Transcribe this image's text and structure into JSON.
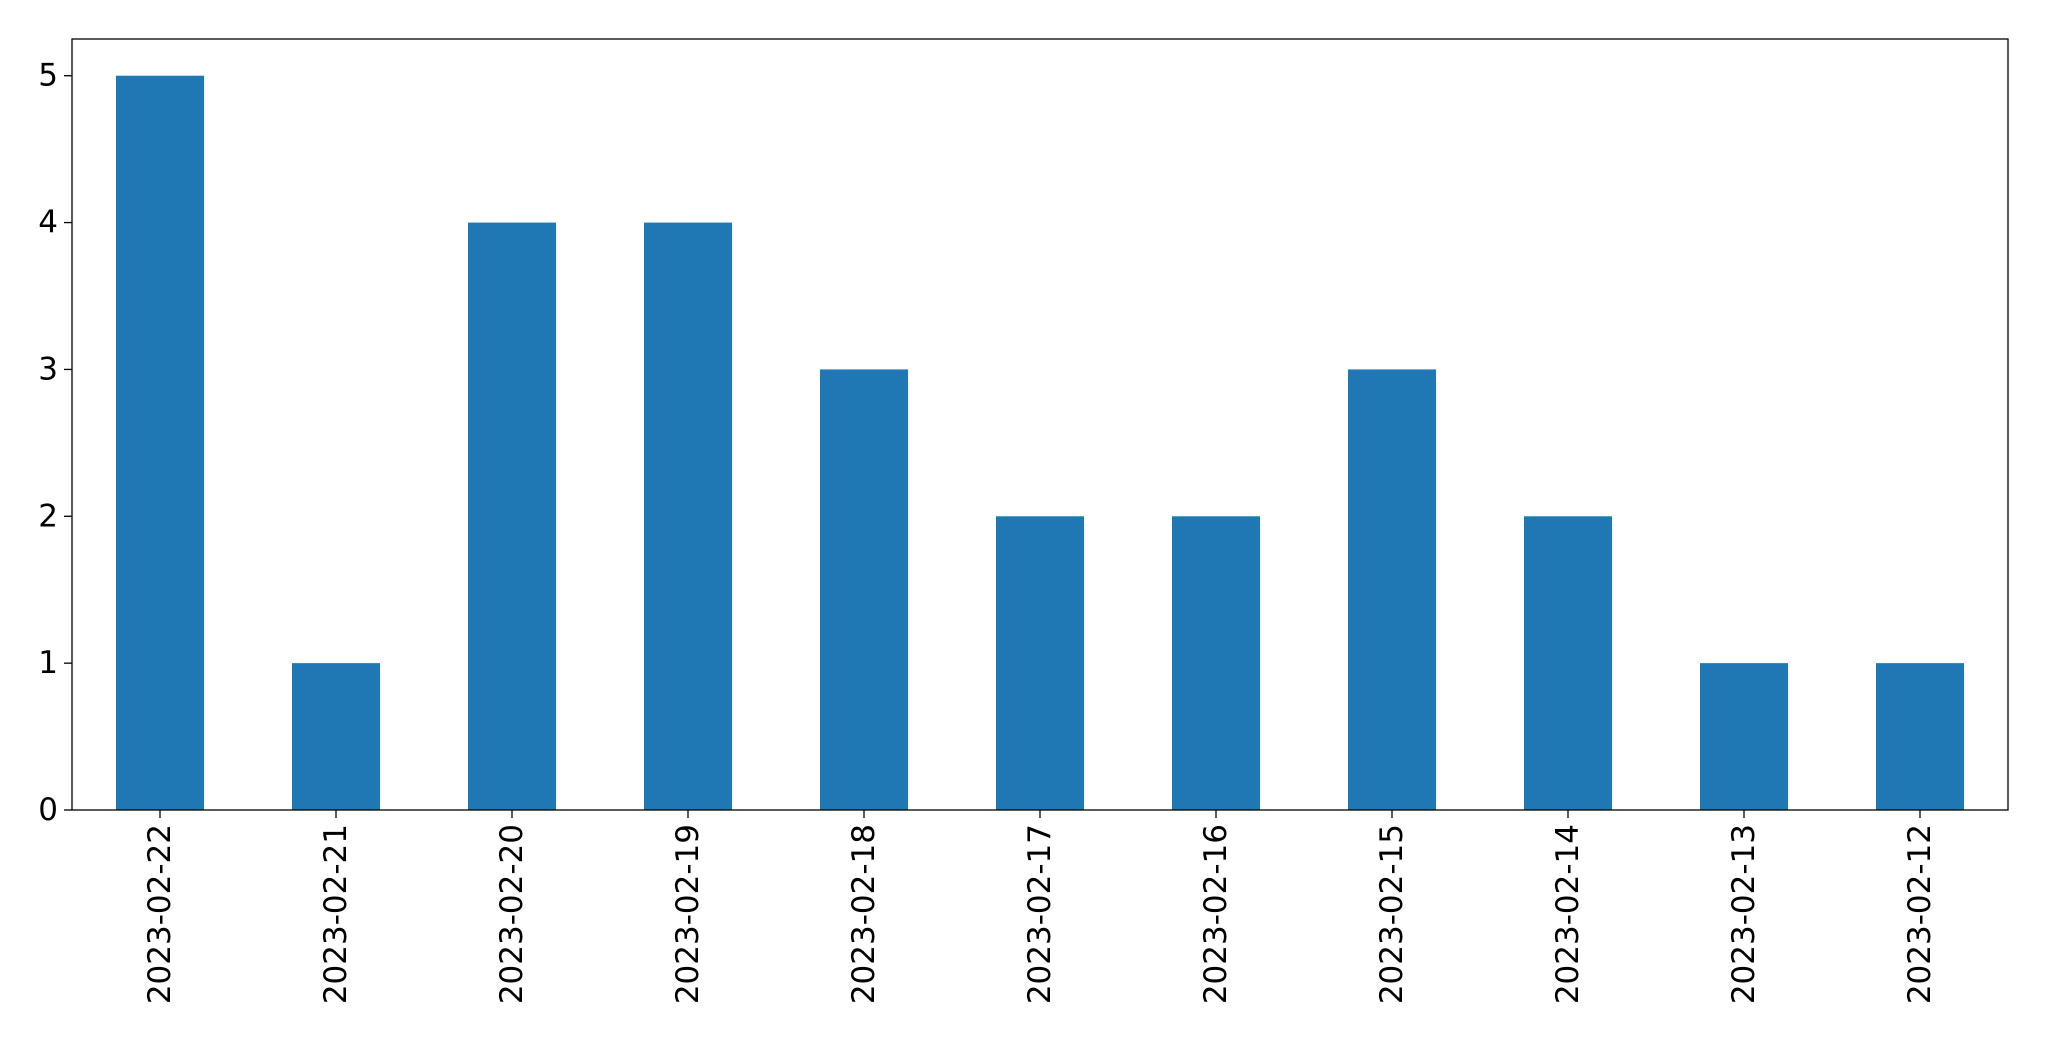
{
  "chart_data": {
    "type": "bar",
    "categories": [
      "2023-02-22",
      "2023-02-21",
      "2023-02-20",
      "2023-02-19",
      "2023-02-18",
      "2023-02-17",
      "2023-02-16",
      "2023-02-15",
      "2023-02-14",
      "2023-02-13",
      "2023-02-12"
    ],
    "values": [
      5,
      1,
      4,
      4,
      3,
      2,
      2,
      3,
      2,
      1,
      1
    ],
    "color": "#1f77b4",
    "ylim": [
      0,
      5.25
    ],
    "yticks": [
      0,
      1,
      2,
      3,
      4,
      5
    ],
    "grid": false
  }
}
